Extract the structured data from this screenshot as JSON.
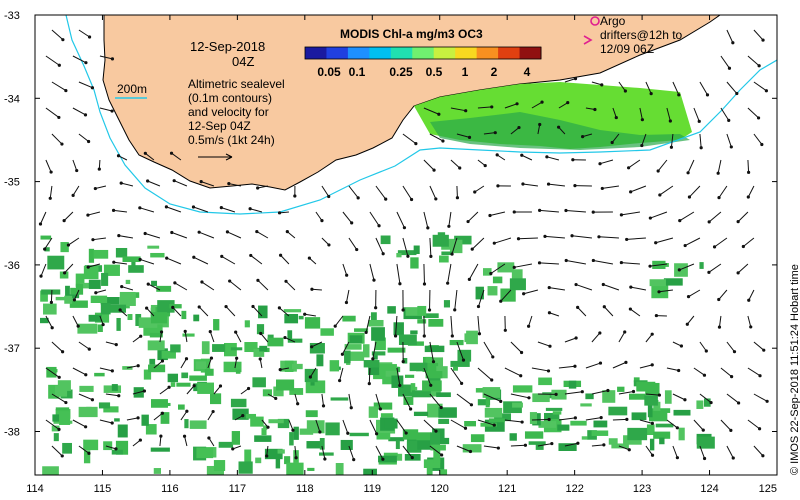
{
  "header": {
    "date": "12-Sep-2018",
    "time": "04Z"
  },
  "colorbar": {
    "title": "MODIS Chl-a mg/m3 OC3",
    "ticks": [
      "0.05",
      "0.1",
      "0.25",
      "0.5",
      "1",
      "2",
      "4"
    ],
    "colors": [
      "#1a1aa0",
      "#2040e0",
      "#1e90ff",
      "#00c0f0",
      "#20e0b0",
      "#70f070",
      "#c8f040",
      "#f8d820",
      "#f89020",
      "#e04010",
      "#901010"
    ]
  },
  "legend": {
    "isobath_label": "200m",
    "isobath_color": "#22c8e8",
    "sealevel_lines": [
      "Altimetric sealevel",
      "(0.1m contours)",
      "and velocity for",
      "12-Sep 04Z"
    ],
    "scale_label": "0.5m/s (1kt 24h)"
  },
  "argo": {
    "marker_color": "#e02090",
    "lines": [
      "Argo",
      "drifters@12h to",
      "12/09 06Z"
    ]
  },
  "axes": {
    "x_ticks": [
      "114",
      "115",
      "116",
      "117",
      "118",
      "119",
      "120",
      "121",
      "122",
      "123",
      "124",
      "125"
    ],
    "y_ticks": [
      "-33",
      "-34",
      "-35",
      "-36",
      "-37",
      "-38"
    ]
  },
  "credit": "© IMOS 22-Sep-2018 11:51:24 Hobart time",
  "colors": {
    "land": "#f8c9a0",
    "chl_green": "#44bb55",
    "chl_bright": "#66dd33",
    "current": "#111111"
  }
}
